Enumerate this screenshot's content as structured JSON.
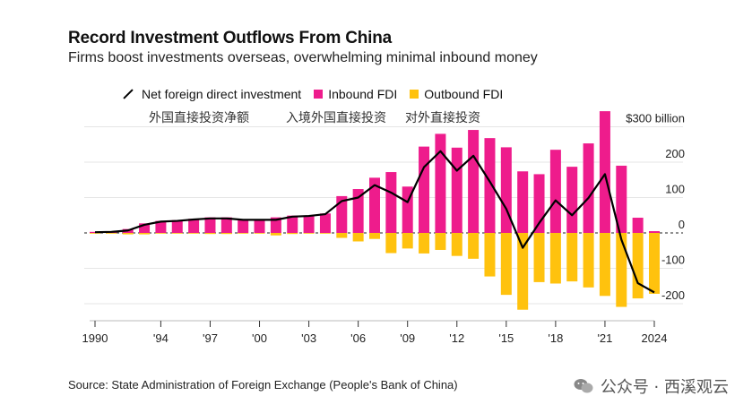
{
  "title": "Record Investment Outflows From China",
  "subtitle": "Firms boost investments overseas, overwhelming minimal inbound money",
  "legend": {
    "net": "Net foreign direct investment",
    "inbound": "Inbound FDI",
    "outbound": "Outbound FDI"
  },
  "annotations": {
    "cn_net": "外国直接投资净额",
    "cn_inbound": "入境外国直接投资",
    "cn_outbound": "对外直接投资"
  },
  "source": "Source: State Administration of Foreign Exchange (People's Bank of China)",
  "watermark": "公众号 · 西溪观云",
  "colors": {
    "inbound": "#ee1c8c",
    "outbound": "#ffc20e",
    "net": "#000000"
  },
  "chart_data": {
    "type": "bar",
    "years": [
      1990,
      1991,
      1992,
      1993,
      1994,
      1995,
      1996,
      1997,
      1998,
      1999,
      2000,
      2001,
      2002,
      2003,
      2004,
      2005,
      2006,
      2007,
      2008,
      2009,
      2010,
      2011,
      2012,
      2013,
      2014,
      2015,
      2016,
      2017,
      2018,
      2019,
      2020,
      2021,
      2022,
      2023,
      2024
    ],
    "series": [
      {
        "name": "Inbound FDI",
        "values": [
          3,
          4,
          11,
          27,
          34,
          36,
          40,
          44,
          44,
          38,
          38,
          44,
          49,
          49,
          55,
          104,
          124,
          156,
          172,
          131,
          244,
          280,
          241,
          291,
          268,
          242,
          174,
          166,
          235,
          187,
          253,
          344,
          190,
          43,
          5
        ]
      },
      {
        "name": "Outbound FDI",
        "values": [
          -1,
          -1,
          -4,
          -4,
          -2,
          -2,
          -2,
          -3,
          -3,
          -2,
          -1,
          -7,
          -3,
          -1,
          -2,
          -14,
          -24,
          -17,
          -57,
          -44,
          -58,
          -48,
          -65,
          -73,
          -123,
          -175,
          -217,
          -139,
          -143,
          -137,
          -154,
          -178,
          -209,
          -185,
          -172
        ]
      },
      {
        "name": "Net foreign direct investment",
        "values": [
          2,
          3,
          7,
          23,
          32,
          34,
          38,
          41,
          41,
          37,
          37,
          37,
          46,
          48,
          53,
          90,
          100,
          135,
          114,
          87,
          186,
          231,
          176,
          218,
          145,
          68,
          -42,
          28,
          92,
          50,
          99,
          166,
          -19,
          -142,
          -168
        ]
      }
    ],
    "x_tick_labels": [
      "1990",
      "'94",
      "'97",
      "'00",
      "'03",
      "'06",
      "'09",
      "'12",
      "'15",
      "'18",
      "'21",
      "2024"
    ],
    "x_tick_years": [
      1990,
      1994,
      1997,
      2000,
      2003,
      2006,
      2009,
      2012,
      2015,
      2018,
      2021,
      2024
    ],
    "y_tick_labels": [
      "$300 billion",
      "200",
      "100",
      "0",
      "-100",
      "-200"
    ],
    "y_tick_values": [
      300,
      200,
      100,
      0,
      -100,
      -200
    ],
    "ylim": [
      -240,
      345
    ],
    "xlabel": "",
    "ylabel": ""
  }
}
